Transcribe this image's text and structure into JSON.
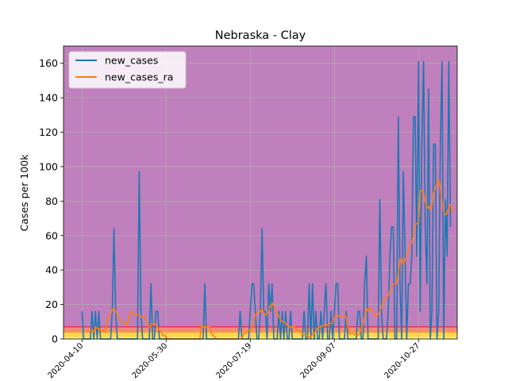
{
  "chart_data": {
    "type": "line",
    "title": "Nebraska - Clay",
    "xlabel": "",
    "ylabel": "Cases per 100k",
    "xlim": [
      "2020-03-30",
      "2020-11-19"
    ],
    "ylim": [
      0,
      170
    ],
    "x_ticks": [
      "2020-04-10",
      "2020-05-30",
      "2020-07-19",
      "2020-09-07",
      "2020-10-27"
    ],
    "y_ticks": [
      0,
      20,
      40,
      60,
      80,
      100,
      120,
      140,
      160
    ],
    "grid": true,
    "legend_position": "upper-left",
    "background_bands": [
      {
        "from": 0,
        "to": 1,
        "color": "#ffff66"
      },
      {
        "from": 1,
        "to": 4,
        "color": "#ffd54f"
      },
      {
        "from": 4,
        "to": 7,
        "color": "#f28c74"
      },
      {
        "from": 7,
        "to": 170,
        "color": "#c07fbd"
      }
    ],
    "threshold_lines": [
      {
        "y": 7,
        "color": "#e8335a"
      },
      {
        "y": 4,
        "color": "#f29b40"
      }
    ],
    "series": [
      {
        "name": "new_cases",
        "color": "#1f77b4",
        "start": "2020-04-10",
        "values": [
          16,
          0,
          0,
          0,
          0,
          0,
          16,
          0,
          16,
          0,
          16,
          0,
          0,
          0,
          0,
          0,
          0,
          0,
          16,
          64,
          16,
          0,
          0,
          0,
          0,
          0,
          0,
          0,
          0,
          0,
          0,
          0,
          0,
          0,
          97,
          16,
          0,
          0,
          0,
          0,
          0,
          32,
          0,
          0,
          16,
          16,
          0,
          0,
          0,
          0,
          0,
          0,
          0,
          0,
          0,
          0,
          0,
          0,
          0,
          0,
          0,
          0,
          0,
          0,
          0,
          0,
          0,
          0,
          0,
          0,
          0,
          0,
          0,
          32,
          0,
          0,
          0,
          0,
          0,
          0,
          0,
          0,
          0,
          0,
          0,
          0,
          0,
          0,
          0,
          0,
          0,
          0,
          0,
          0,
          16,
          0,
          0,
          0,
          0,
          0,
          16,
          32,
          32,
          16,
          0,
          0,
          16,
          64,
          16,
          16,
          0,
          32,
          16,
          32,
          0,
          0,
          0,
          16,
          0,
          16,
          0,
          16,
          0,
          0,
          16,
          0,
          0,
          0,
          0,
          0,
          0,
          0,
          16,
          0,
          0,
          32,
          0,
          32,
          0,
          16,
          0,
          0,
          16,
          0,
          16,
          32,
          0,
          0,
          16,
          0,
          16,
          32,
          32,
          0,
          0,
          0,
          0,
          16,
          0,
          0,
          0,
          0,
          0,
          0,
          16,
          16,
          0,
          0,
          32,
          48,
          0,
          0,
          0,
          0,
          0,
          0,
          0,
          81,
          16,
          0,
          0,
          0,
          16,
          48,
          65,
          65,
          0,
          0,
          129,
          32,
          0,
          97,
          48,
          0,
          32,
          32,
          48,
          129,
          129,
          48,
          161,
          16,
          113,
          161,
          65,
          32,
          145,
          0,
          16,
          113,
          113,
          0,
          16,
          113,
          161,
          0,
          81,
          48,
          161,
          65
        ],
        "end": "2020-11-12"
      },
      {
        "name": "new_cases_ra",
        "color": "#ff7f0e",
        "start": "2020-04-14",
        "values": [
          5,
          5,
          5,
          4,
          7,
          6,
          6,
          5,
          5,
          4,
          5,
          12,
          12,
          14,
          17,
          18,
          16,
          14,
          12,
          11,
          10,
          9,
          9,
          8,
          13,
          16,
          15,
          14,
          14,
          14,
          14,
          13,
          13,
          13,
          11,
          9,
          7,
          8,
          9,
          9,
          8,
          7,
          5,
          4,
          2,
          2,
          1,
          0,
          0,
          0,
          0,
          0,
          0,
          0,
          0,
          0,
          0,
          0,
          0,
          0,
          0,
          0,
          0,
          0,
          0,
          0,
          0,
          7,
          7,
          7,
          7,
          7,
          7,
          3,
          2,
          1,
          0,
          0,
          0,
          0,
          0,
          0,
          0,
          0,
          0,
          0,
          0,
          0,
          0,
          0,
          0,
          0,
          3,
          3,
          4,
          5,
          5,
          6,
          9,
          14,
          15,
          15,
          16,
          18,
          15,
          14,
          14,
          17,
          19,
          21,
          19,
          16,
          15,
          13,
          11,
          10,
          10,
          9,
          8,
          7,
          7,
          7,
          7,
          6,
          5,
          5,
          4,
          3,
          2,
          2,
          2,
          1,
          1,
          3,
          3,
          5,
          6,
          7,
          7,
          8,
          8,
          8,
          8,
          9,
          9,
          10,
          12,
          14,
          14,
          13,
          13,
          13,
          14,
          13,
          7,
          3,
          3,
          3,
          3,
          2,
          2,
          3,
          6,
          9,
          13,
          18,
          16,
          18,
          17,
          16,
          14,
          13,
          14,
          16,
          19,
          22,
          23,
          24,
          25,
          28,
          30,
          32,
          32,
          32,
          38,
          46,
          47,
          43,
          46,
          48,
          51,
          54,
          56,
          60,
          66,
          67,
          68,
          86,
          86,
          86,
          80,
          76,
          77,
          75,
          77,
          85,
          87,
          90,
          93,
          88,
          80,
          74,
          72,
          73,
          76,
          78,
          74,
          75
        ]
      }
    ]
  }
}
